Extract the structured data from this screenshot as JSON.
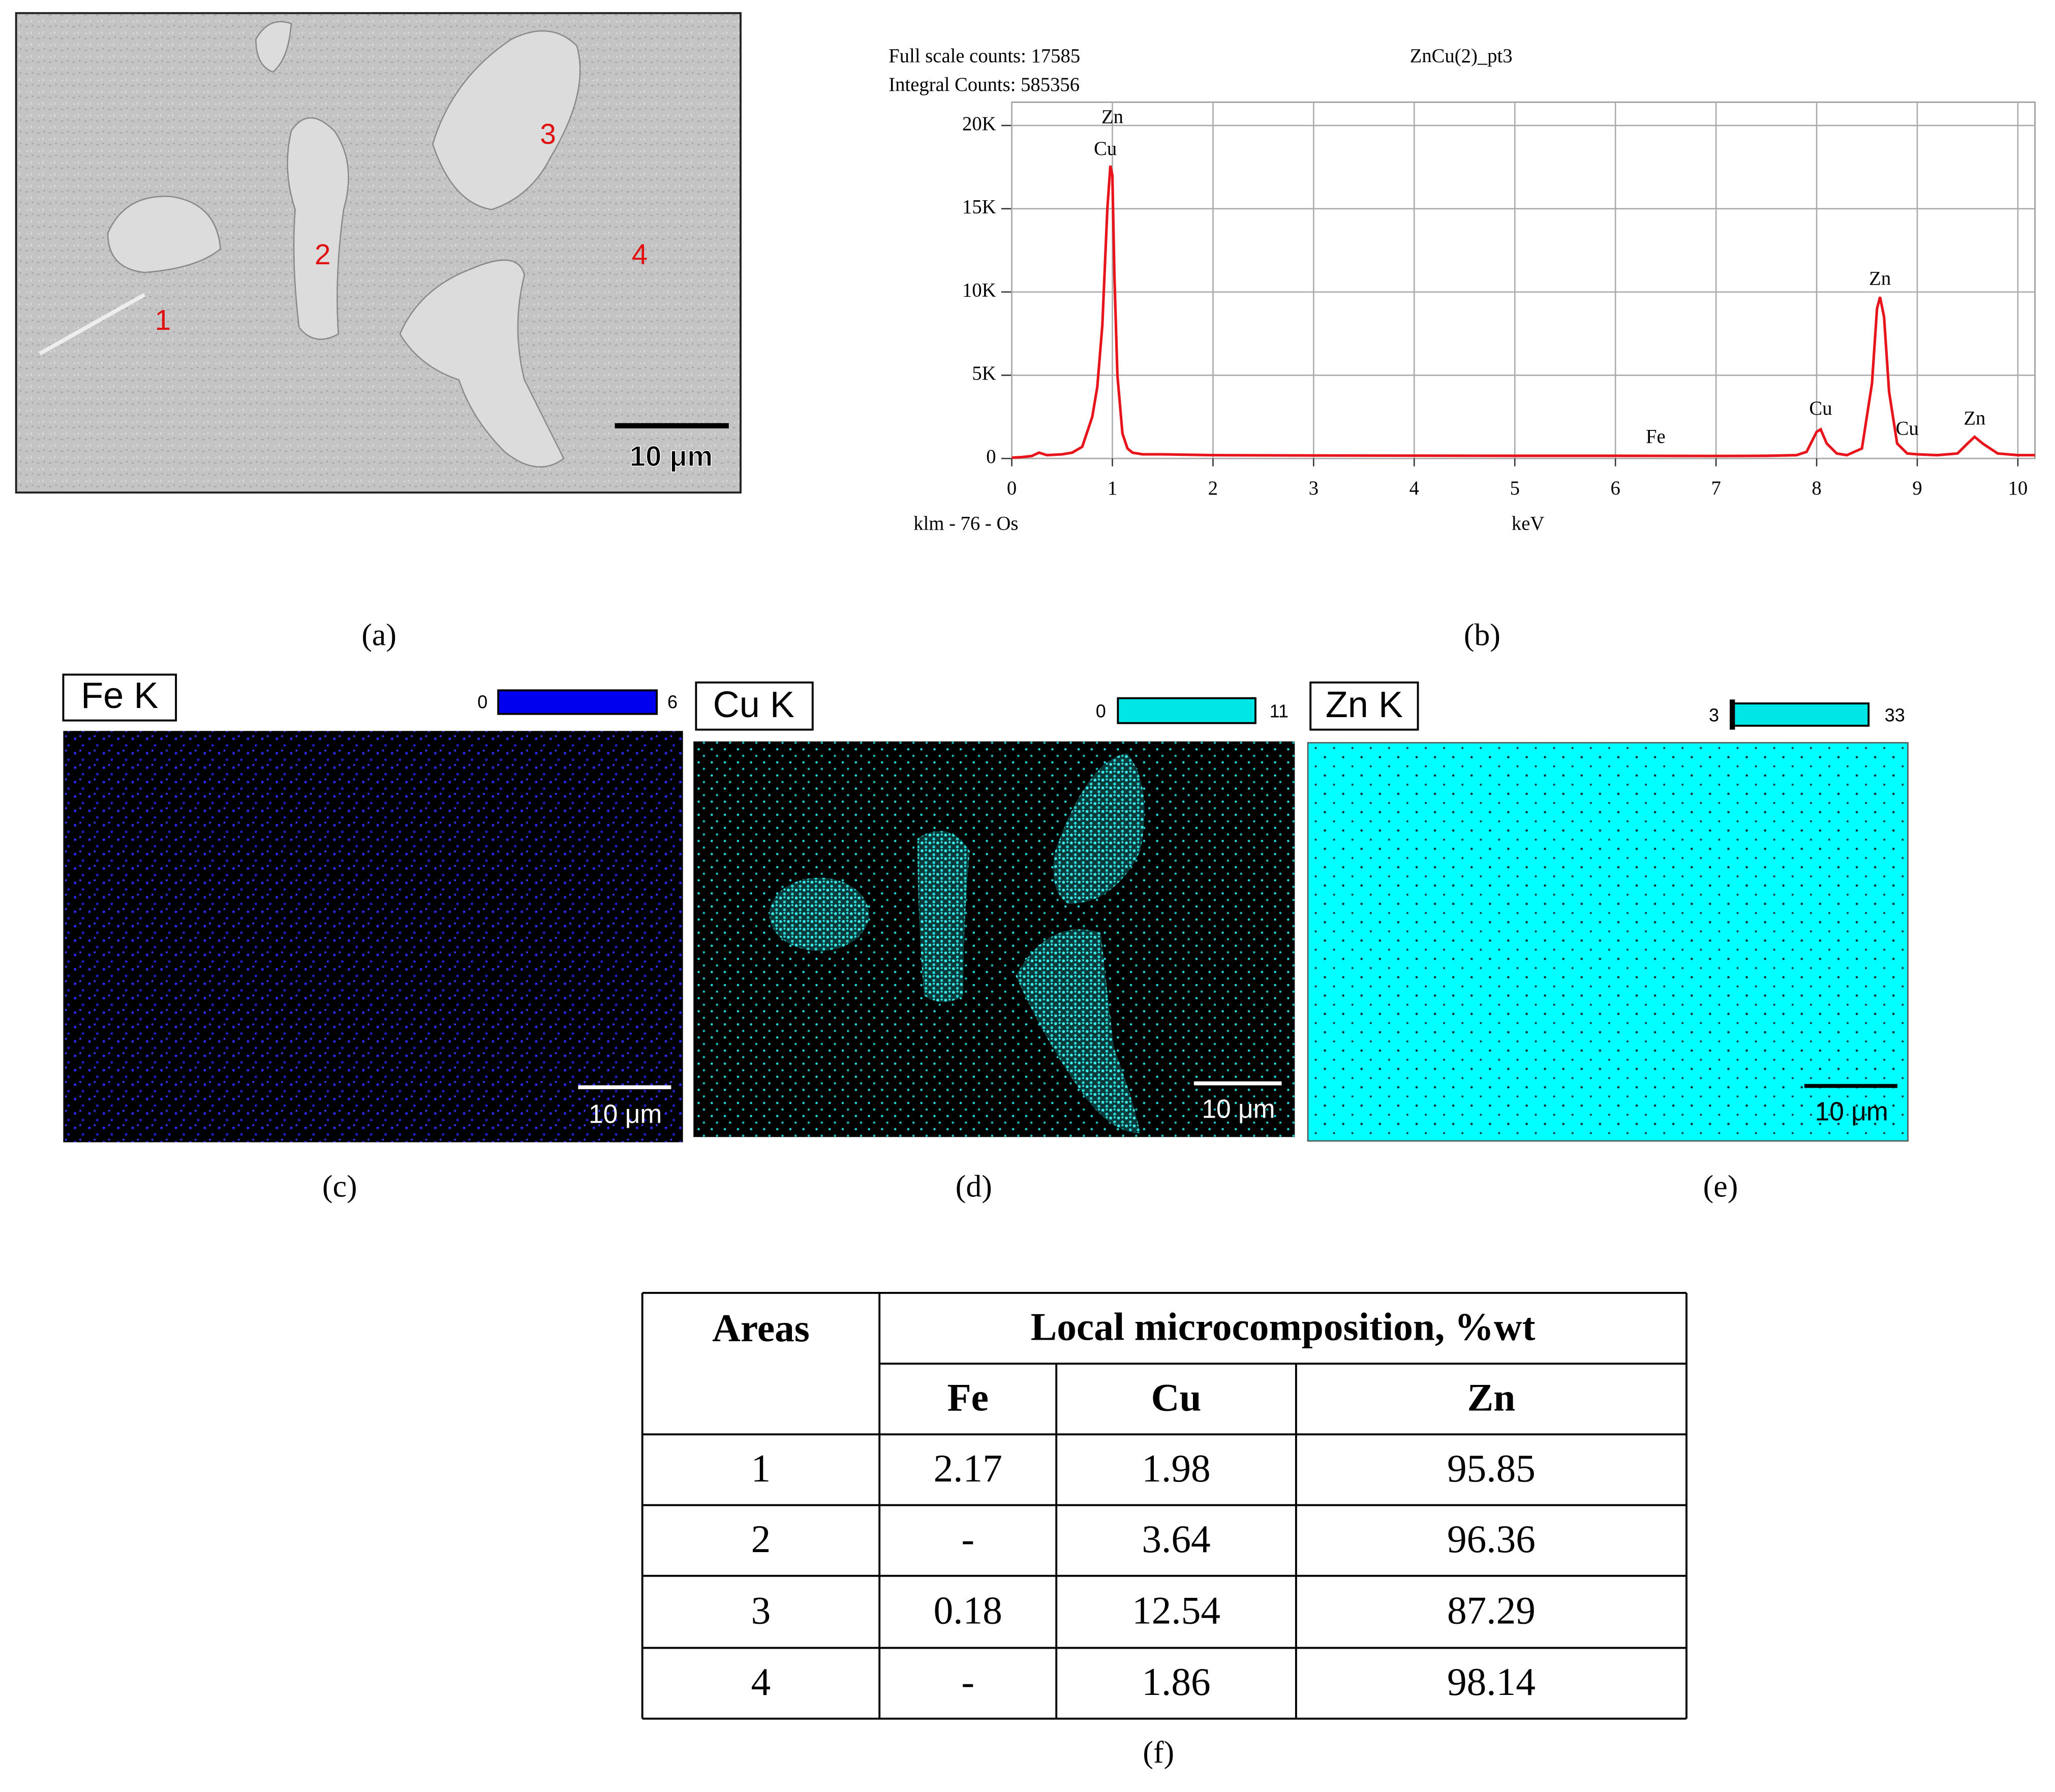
{
  "panels": {
    "a": {
      "caption": "(a)",
      "labels": [
        "1",
        "2",
        "3",
        "4"
      ],
      "scale_bar": "10 μm"
    },
    "b": {
      "caption": "(b)"
    },
    "c": {
      "caption": "(c)",
      "element": "Fe K",
      "scale_min": 0,
      "scale_max": 6,
      "scale_bar": "10 μm"
    },
    "d": {
      "caption": "(d)",
      "element": "Cu K",
      "scale_min": 0,
      "scale_max": 11,
      "scale_bar": "10 μm"
    },
    "e": {
      "caption": "(e)",
      "element": "Zn K",
      "scale_min": 3,
      "scale_max": 33,
      "scale_bar": "10 μm"
    },
    "f": {
      "caption": "(f)"
    }
  },
  "chart_data": {
    "type": "line",
    "title": "ZnCu(2)_pt3",
    "header": [
      "Full scale counts: 17585",
      "Integral Counts: 585356"
    ],
    "x_label": "keV",
    "footer_label": "klm - 76 - Os",
    "color": "#e8141b",
    "grid": true,
    "x": [
      0,
      0.1,
      0.2,
      0.27,
      0.35,
      0.5,
      0.6,
      0.7,
      0.8,
      0.85,
      0.9,
      0.95,
      0.98,
      1.0,
      1.02,
      1.05,
      1.1,
      1.15,
      1.2,
      1.3,
      1.5,
      2,
      3,
      4,
      5,
      6,
      7,
      7.5,
      7.8,
      7.9,
      7.95,
      8.0,
      8.04,
      8.1,
      8.2,
      8.3,
      8.45,
      8.55,
      8.6,
      8.63,
      8.67,
      8.72,
      8.8,
      8.9,
      9.0,
      9.2,
      9.4,
      9.5,
      9.57,
      9.65,
      9.8,
      10.0,
      10.17
    ],
    "values": [
      50,
      80,
      150,
      350,
      200,
      250,
      350,
      700,
      2500,
      4300,
      8000,
      15000,
      17585,
      17000,
      11000,
      5000,
      1500,
      600,
      350,
      250,
      250,
      200,
      180,
      170,
      160,
      160,
      150,
      160,
      200,
      400,
      1000,
      1600,
      1750,
      900,
      300,
      200,
      600,
      4500,
      9000,
      9700,
      8500,
      4000,
      900,
      300,
      250,
      200,
      300,
      900,
      1300,
      900,
      300,
      200,
      200
    ],
    "xlim": [
      0,
      10.17
    ],
    "xticks": [
      0,
      1,
      2,
      3,
      4,
      5,
      6,
      7,
      8,
      9,
      10
    ],
    "ylim": [
      0,
      21400
    ],
    "yticks": [
      0,
      {
        "value": 5000,
        "label": "5K"
      },
      {
        "value": 10000,
        "label": "10K"
      },
      {
        "value": 15000,
        "label": "15K"
      },
      {
        "value": 20000,
        "label": "20K"
      }
    ],
    "annotations": [
      {
        "text": "Zn",
        "x": 1.0,
        "y": 20400
      },
      {
        "text": "Cu",
        "x": 0.93,
        "y": 18500
      },
      {
        "text": "Fe",
        "x": 6.4,
        "y": 1200
      },
      {
        "text": "Cu",
        "x": 8.04,
        "y": 2900
      },
      {
        "text": "Zn",
        "x": 8.63,
        "y": 10700
      },
      {
        "text": "Cu",
        "x": 8.9,
        "y": 1700
      },
      {
        "text": "Zn",
        "x": 9.57,
        "y": 2300
      }
    ]
  },
  "table": {
    "header": [
      "Areas",
      "Local microcomposition, %wt"
    ],
    "subheader": [
      "Fe",
      "Cu",
      "Zn"
    ],
    "rows": [
      [
        1,
        2.17,
        1.98,
        95.85
      ],
      [
        2,
        "-",
        3.64,
        96.36
      ],
      [
        3,
        0.18,
        12.54,
        87.29
      ],
      [
        4,
        "-",
        1.86,
        98.14
      ]
    ]
  }
}
